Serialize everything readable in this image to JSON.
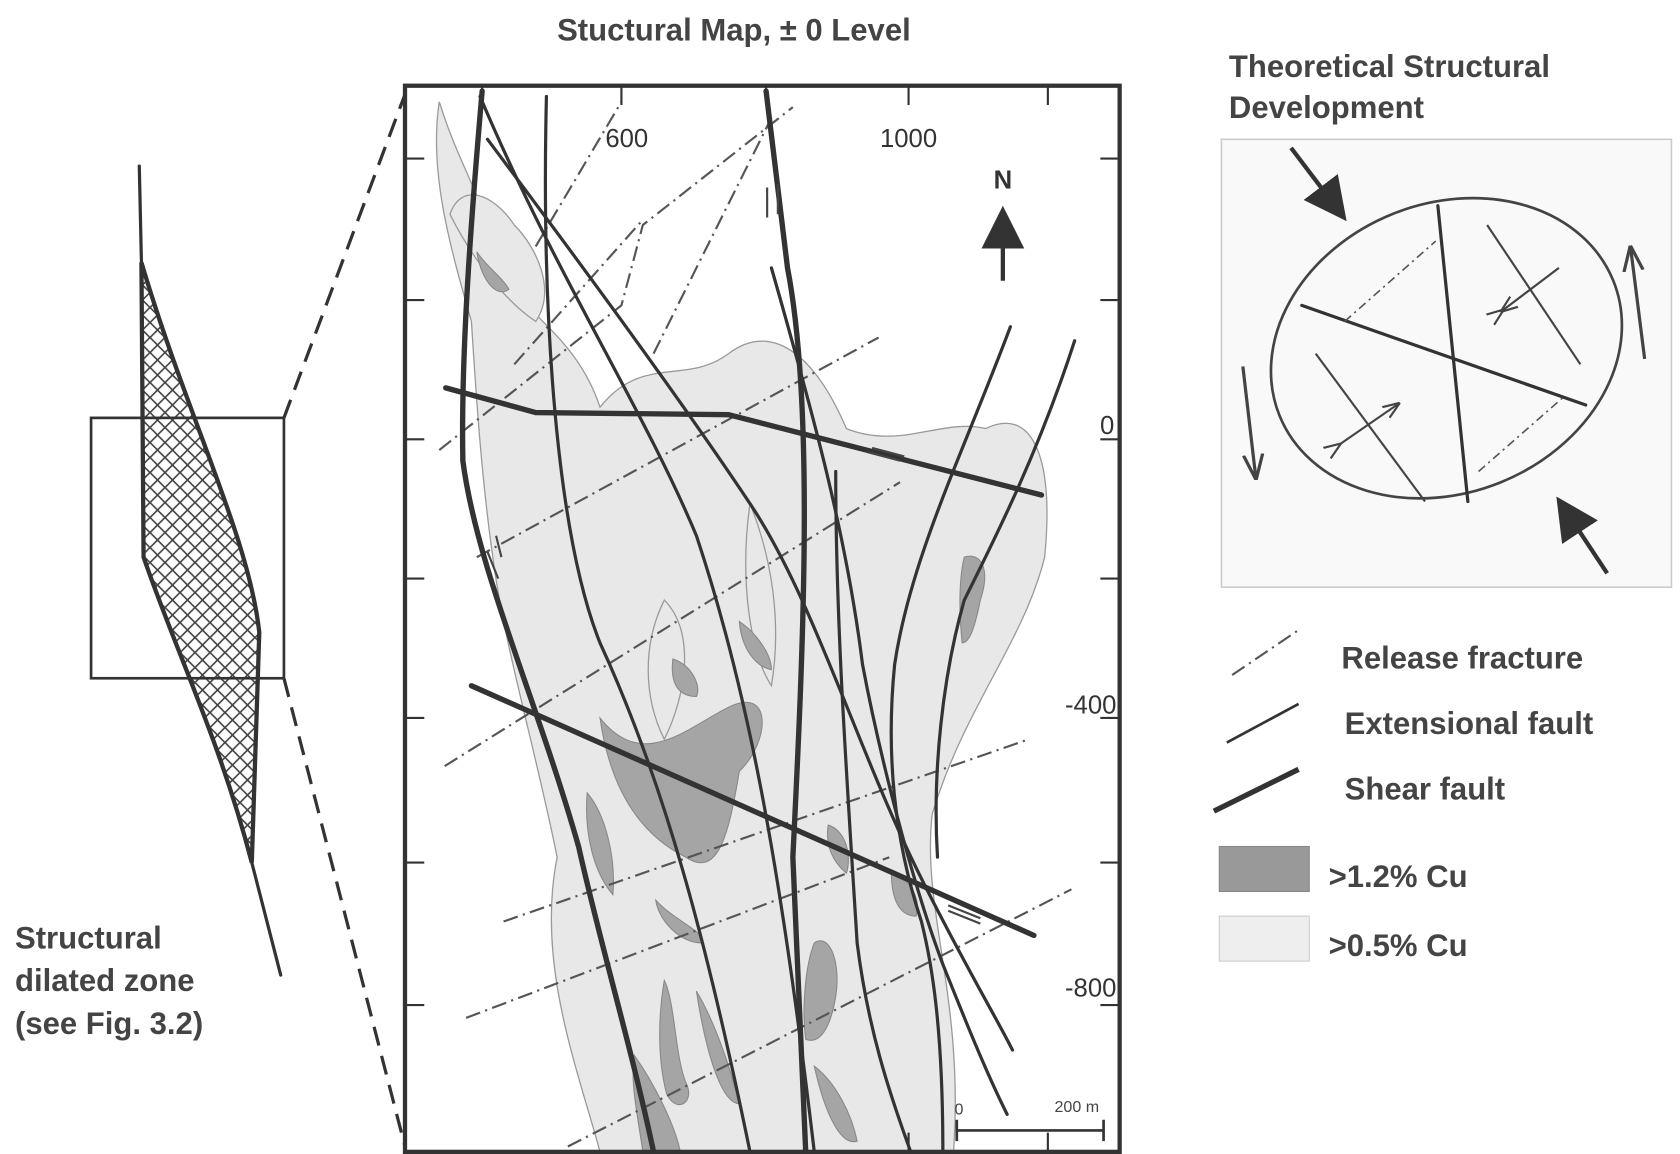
{
  "title": "Stuctural Map, ± 0 Level",
  "map": {
    "x_labels": [
      "600",
      "1000"
    ],
    "y_labels": [
      "0",
      "-400",
      "-800"
    ],
    "north": "N",
    "scale": {
      "start": "0",
      "end": "200 m"
    }
  },
  "left_label": {
    "lines": [
      "Structural",
      "dilated zone",
      "(see Fig. 3.2)"
    ]
  },
  "theory": {
    "title_lines": [
      "Theoretical Structural",
      "Development"
    ]
  },
  "legend": {
    "items": [
      "Release fracture",
      "Extensional fault",
      "Shear fault",
      ">1.2% Cu",
      ">0.5% Cu"
    ]
  }
}
